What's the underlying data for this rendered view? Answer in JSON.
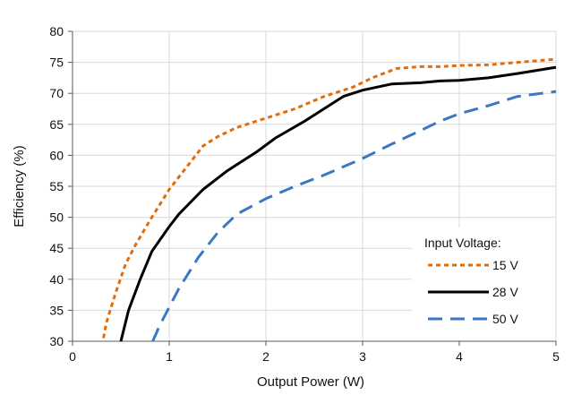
{
  "chart_data": {
    "type": "line",
    "title": "",
    "xlabel": "Output Power (W)",
    "ylabel": "Efficiency (%)",
    "xlim": [
      0,
      5
    ],
    "ylim": [
      30,
      80
    ],
    "x_ticks": [
      0,
      1,
      2,
      3,
      4,
      5
    ],
    "y_ticks": [
      30,
      35,
      40,
      45,
      50,
      55,
      60,
      65,
      70,
      75,
      80
    ],
    "grid": true,
    "legend": {
      "title": "Input Voltage:",
      "placement": "bottom-right"
    },
    "series": [
      {
        "name": "15 V",
        "color": "#e36c0a",
        "style": "dotted",
        "points": [
          [
            0.32,
            30.5
          ],
          [
            0.35,
            33
          ],
          [
            0.45,
            38
          ],
          [
            0.55,
            42.5
          ],
          [
            0.65,
            45.5
          ],
          [
            0.8,
            49.5
          ],
          [
            1.0,
            54.5
          ],
          [
            1.2,
            58.5
          ],
          [
            1.35,
            61.5
          ],
          [
            1.5,
            63
          ],
          [
            1.7,
            64.5
          ],
          [
            2.0,
            66
          ],
          [
            2.3,
            67.5
          ],
          [
            2.6,
            69.5
          ],
          [
            2.9,
            71
          ],
          [
            3.1,
            72.5
          ],
          [
            3.35,
            74
          ],
          [
            3.6,
            74.3
          ],
          [
            3.8,
            74.3
          ],
          [
            4.0,
            74.5
          ],
          [
            4.3,
            74.6
          ],
          [
            4.6,
            75
          ],
          [
            5.0,
            75.5
          ]
        ]
      },
      {
        "name": "28 V",
        "color": "#000000",
        "style": "solid",
        "points": [
          [
            0.5,
            30
          ],
          [
            0.58,
            35
          ],
          [
            0.7,
            40
          ],
          [
            0.82,
            44.5
          ],
          [
            1.0,
            48.5
          ],
          [
            1.1,
            50.5
          ],
          [
            1.35,
            54.5
          ],
          [
            1.6,
            57.5
          ],
          [
            1.9,
            60.5
          ],
          [
            2.1,
            62.8
          ],
          [
            2.4,
            65.5
          ],
          [
            2.6,
            67.5
          ],
          [
            2.8,
            69.5
          ],
          [
            3.0,
            70.5
          ],
          [
            3.3,
            71.5
          ],
          [
            3.6,
            71.7
          ],
          [
            3.8,
            72
          ],
          [
            4.0,
            72.1
          ],
          [
            4.3,
            72.5
          ],
          [
            4.6,
            73.2
          ],
          [
            5.0,
            74.2
          ]
        ]
      },
      {
        "name": "50 V",
        "color": "#3a78c3",
        "style": "dashed",
        "points": [
          [
            0.83,
            30
          ],
          [
            0.9,
            32.5
          ],
          [
            1.0,
            35.5
          ],
          [
            1.1,
            38.5
          ],
          [
            1.3,
            43.5
          ],
          [
            1.5,
            47.5
          ],
          [
            1.7,
            50.5
          ],
          [
            2.0,
            53
          ],
          [
            2.3,
            55
          ],
          [
            2.6,
            56.8
          ],
          [
            3.0,
            59.5
          ],
          [
            3.3,
            61.8
          ],
          [
            3.6,
            64
          ],
          [
            3.8,
            65.5
          ],
          [
            4.0,
            66.7
          ],
          [
            4.3,
            68
          ],
          [
            4.6,
            69.5
          ],
          [
            5.0,
            70.3
          ]
        ]
      }
    ]
  }
}
